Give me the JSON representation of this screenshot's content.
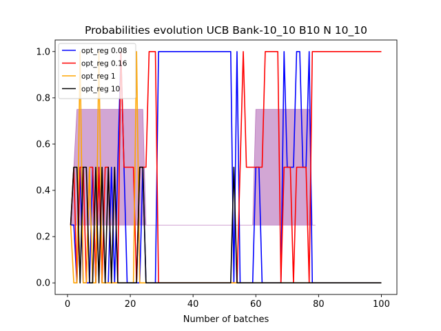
{
  "chart_data": {
    "type": "line",
    "title": "Probabilities evolution UCB Bank-10_10 B10 N 10_10",
    "xlabel": "Number of batches",
    "ylabel": "",
    "xlim": [
      -3.95,
      104.95
    ],
    "ylim": [
      -0.05,
      1.05
    ],
    "xticks": [
      0,
      20,
      40,
      60,
      80,
      100
    ],
    "yticks": [
      0.0,
      0.2,
      0.4,
      0.6,
      0.8,
      1.0
    ],
    "xtick_labels": [
      "0",
      "20",
      "40",
      "60",
      "80",
      "100"
    ],
    "ytick_labels": [
      "0.0",
      "0.2",
      "0.4",
      "0.6",
      "0.8",
      "1.0"
    ],
    "grid": false,
    "legend_position": "top-left",
    "band": {
      "color": "#9b3aa0",
      "opacity": 0.45,
      "lower": [
        [
          1,
          0.25
        ],
        [
          2,
          0.25
        ],
        [
          3,
          0.25
        ],
        [
          17,
          0.25
        ],
        [
          18,
          0.25
        ],
        [
          24,
          0.25
        ],
        [
          25,
          0.25
        ],
        [
          26,
          0.25
        ],
        [
          59,
          0.25
        ],
        [
          60,
          0.25
        ],
        [
          63,
          0.25
        ],
        [
          71,
          0.25
        ],
        [
          72,
          0.25
        ],
        [
          77,
          0.25
        ],
        [
          78,
          0.25
        ],
        [
          79,
          0.25
        ]
      ],
      "upper": [
        [
          1,
          0.25
        ],
        [
          2,
          0.5
        ],
        [
          3,
          0.75
        ],
        [
          17,
          0.75
        ],
        [
          18,
          0.75
        ],
        [
          24,
          0.75
        ],
        [
          25,
          0.25
        ],
        [
          26,
          0.25
        ],
        [
          59,
          0.25
        ],
        [
          60,
          0.75
        ],
        [
          63,
          0.75
        ],
        [
          71,
          0.75
        ],
        [
          72,
          0.75
        ],
        [
          77,
          0.75
        ],
        [
          78,
          0.25
        ],
        [
          79,
          0.25
        ]
      ]
    },
    "series": [
      {
        "name": "opt_reg 0.08",
        "color": "#0000ff",
        "points": [
          [
            1,
            0.25
          ],
          [
            2,
            0.25
          ],
          [
            3,
            0.0
          ],
          [
            4,
            0.5
          ],
          [
            5,
            0.0
          ],
          [
            6,
            0.0
          ],
          [
            7,
            0.0
          ],
          [
            8,
            0.5
          ],
          [
            9,
            0.0
          ],
          [
            10,
            0.5
          ],
          [
            11,
            0.0
          ],
          [
            12,
            0.0
          ],
          [
            13,
            0.0
          ],
          [
            14,
            0.5
          ],
          [
            15,
            0.0
          ],
          [
            16,
            0.5
          ],
          [
            17,
            1.0
          ],
          [
            18,
            0.5
          ],
          [
            19,
            0.0
          ],
          [
            20,
            0.0
          ],
          [
            21,
            0.0
          ],
          [
            22,
            0.0
          ],
          [
            23,
            0.0
          ],
          [
            24,
            0.5
          ],
          [
            25,
            0.0
          ],
          [
            26,
            0.0
          ],
          [
            27,
            0.0
          ],
          [
            28,
            0.0
          ],
          [
            29,
            1.0
          ],
          [
            52,
            1.0
          ],
          [
            53,
            0.0
          ],
          [
            54,
            1.0
          ],
          [
            55,
            0.0
          ],
          [
            56,
            0.0
          ],
          [
            57,
            0.0
          ],
          [
            58,
            0.0
          ],
          [
            59,
            0.0
          ],
          [
            60,
            0.5
          ],
          [
            61,
            0.5
          ],
          [
            62,
            0.0
          ],
          [
            67,
            0.0
          ],
          [
            68,
            0.0
          ],
          [
            69,
            1.0
          ],
          [
            70,
            0.5
          ],
          [
            71,
            0.5
          ],
          [
            72,
            0.5
          ],
          [
            73,
            1.0
          ],
          [
            74,
            1.0
          ],
          [
            75,
            0.5
          ],
          [
            76,
            0.5
          ],
          [
            77,
            1.0
          ],
          [
            78,
            0.0
          ],
          [
            100,
            0.0
          ]
        ]
      },
      {
        "name": "opt_reg 0.16",
        "color": "#ff0000",
        "points": [
          [
            1,
            0.25
          ],
          [
            2,
            0.5
          ],
          [
            3,
            0.0
          ],
          [
            4,
            0.5
          ],
          [
            5,
            0.5
          ],
          [
            6,
            0.0
          ],
          [
            7,
            0.5
          ],
          [
            8,
            0.5
          ],
          [
            9,
            0.0
          ],
          [
            10,
            0.5
          ],
          [
            11,
            0.0
          ],
          [
            12,
            0.5
          ],
          [
            13,
            0.5
          ],
          [
            14,
            0.0
          ],
          [
            15,
            0.0
          ],
          [
            16,
            0.0
          ],
          [
            17,
            1.0
          ],
          [
            18,
            0.5
          ],
          [
            19,
            0.5
          ],
          [
            20,
            0.5
          ],
          [
            21,
            0.5
          ],
          [
            22,
            0.0
          ],
          [
            23,
            0.5
          ],
          [
            24,
            0.5
          ],
          [
            25,
            0.5
          ],
          [
            26,
            1.0
          ],
          [
            27,
            1.0
          ],
          [
            28,
            1.0
          ],
          [
            29,
            0.0
          ],
          [
            54,
            0.0
          ],
          [
            55,
            0.5
          ],
          [
            56,
            1.0
          ],
          [
            57,
            0.5
          ],
          [
            58,
            0.5
          ],
          [
            59,
            0.5
          ],
          [
            60,
            0.5
          ],
          [
            61,
            0.5
          ],
          [
            62,
            0.5
          ],
          [
            63,
            1.0
          ],
          [
            67,
            1.0
          ],
          [
            68,
            0.0
          ],
          [
            69,
            0.5
          ],
          [
            70,
            0.5
          ],
          [
            71,
            0.5
          ],
          [
            72,
            0.0
          ],
          [
            73,
            0.5
          ],
          [
            74,
            0.5
          ],
          [
            75,
            0.5
          ],
          [
            76,
            0.5
          ],
          [
            77,
            0.0
          ],
          [
            78,
            1.0
          ],
          [
            100,
            1.0
          ]
        ]
      },
      {
        "name": "opt_reg 1",
        "color": "#ffa500",
        "points": [
          [
            1,
            0.25
          ],
          [
            2,
            0.0
          ],
          [
            3,
            0.0
          ],
          [
            4,
            1.0
          ],
          [
            5,
            0.0
          ],
          [
            6,
            0.0
          ],
          [
            7,
            0.5
          ],
          [
            8,
            0.0
          ],
          [
            9,
            0.0
          ],
          [
            10,
            1.0
          ],
          [
            11,
            0.0
          ],
          [
            12,
            0.0
          ],
          [
            13,
            0.0
          ],
          [
            14,
            0.0
          ],
          [
            15,
            0.0
          ],
          [
            16,
            0.0
          ],
          [
            17,
            0.0
          ],
          [
            18,
            0.0
          ],
          [
            19,
            0.0
          ],
          [
            20,
            0.0
          ],
          [
            21,
            0.0
          ],
          [
            22,
            1.0
          ],
          [
            23,
            0.0
          ],
          [
            24,
            0.0
          ],
          [
            25,
            0.0
          ],
          [
            53,
            0.0
          ],
          [
            54,
            0.0
          ],
          [
            55,
            0.0
          ],
          [
            100,
            0.0
          ]
        ]
      },
      {
        "name": "opt_reg 10",
        "color": "#000000",
        "points": [
          [
            1,
            0.25
          ],
          [
            2,
            0.5
          ],
          [
            3,
            0.5
          ],
          [
            4,
            0.0
          ],
          [
            5,
            0.5
          ],
          [
            6,
            0.5
          ],
          [
            7,
            0.0
          ],
          [
            8,
            0.0
          ],
          [
            9,
            0.5
          ],
          [
            10,
            0.0
          ],
          [
            11,
            0.5
          ],
          [
            12,
            0.0
          ],
          [
            13,
            0.5
          ],
          [
            14,
            0.0
          ],
          [
            15,
            0.5
          ],
          [
            16,
            0.0
          ],
          [
            17,
            0.0
          ],
          [
            18,
            0.0
          ],
          [
            19,
            0.0
          ],
          [
            20,
            0.0
          ],
          [
            21,
            0.0
          ],
          [
            22,
            0.0
          ],
          [
            23,
            0.5
          ],
          [
            24,
            0.5
          ],
          [
            25,
            0.0
          ],
          [
            52,
            0.0
          ],
          [
            53,
            0.5
          ],
          [
            54,
            0.0
          ],
          [
            100,
            0.0
          ]
        ]
      }
    ]
  }
}
